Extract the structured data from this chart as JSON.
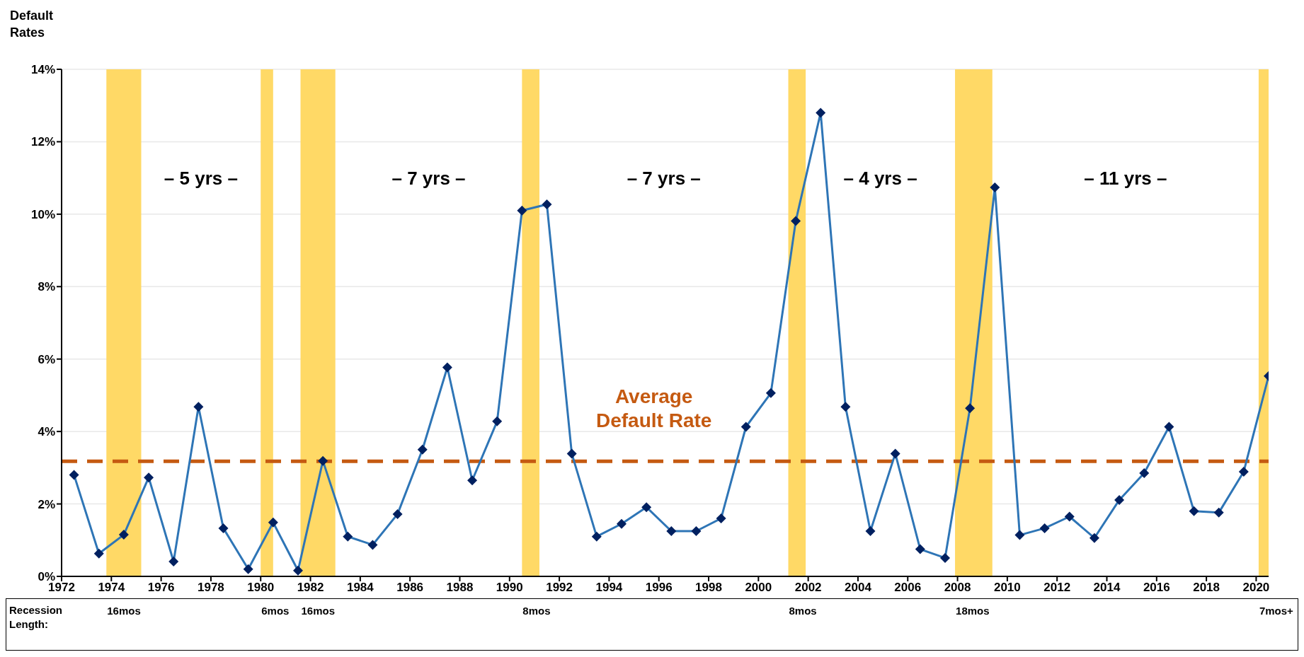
{
  "chart_data": {
    "type": "line",
    "ylabel": "Default Rates",
    "x": [
      1972.5,
      1973.5,
      1974.5,
      1975.5,
      1976.5,
      1977.5,
      1978.5,
      1979.5,
      1980.5,
      1981.5,
      1982.5,
      1983.5,
      1984.5,
      1985.5,
      1986.5,
      1987.5,
      1988.5,
      1989.5,
      1990.5,
      1991.5,
      1992.5,
      1993.5,
      1994.5,
      1995.5,
      1996.5,
      1997.5,
      1998.5,
      1999.5,
      2000.5,
      2001.5,
      2002.5,
      2003.5,
      2004.5,
      2005.5,
      2006.5,
      2007.5,
      2008.5,
      2009.5,
      2010.5,
      2011.5,
      2012.5,
      2013.5,
      2014.5,
      2015.5,
      2016.5,
      2017.5,
      2018.5,
      2019.5,
      2020.5
    ],
    "series": [
      {
        "color": "#2e75b6",
        "values": [
          2.8,
          0.63,
          1.15,
          2.73,
          0.41,
          4.68,
          1.33,
          0.2,
          1.49,
          0.16,
          3.19,
          1.1,
          0.87,
          1.72,
          3.5,
          5.77,
          2.65,
          4.28,
          10.1,
          10.27,
          3.39,
          1.1,
          1.45,
          1.91,
          1.25,
          1.25,
          1.6,
          4.13,
          5.06,
          9.81,
          12.8,
          4.68,
          1.25,
          3.39,
          0.75,
          0.51,
          4.64,
          10.74,
          1.14,
          1.33,
          1.65,
          1.06,
          2.11,
          2.85,
          4.13,
          1.8,
          1.76,
          2.89,
          5.53
        ]
      }
    ],
    "marker": "diamond",
    "line_style": "solid",
    "grid": "y",
    "xlim": [
      1972,
      2020.5
    ],
    "xticks": [
      1972,
      1974,
      1976,
      1978,
      1980,
      1982,
      1984,
      1986,
      1988,
      1990,
      1992,
      1994,
      1996,
      1998,
      2000,
      2002,
      2004,
      2006,
      2008,
      2010,
      2012,
      2014,
      2016,
      2018,
      2020
    ],
    "ylim": [
      0,
      14
    ],
    "yticks": [
      {
        "value": 0,
        "label": "0%"
      },
      {
        "value": 2,
        "label": "2%"
      },
      {
        "value": 4,
        "label": "4%"
      },
      {
        "value": 6,
        "label": "6%"
      },
      {
        "value": 8,
        "label": "8%"
      },
      {
        "value": 10,
        "label": "10%"
      },
      {
        "value": 12,
        "label": "12%"
      },
      {
        "value": 14,
        "label": "14%"
      }
    ],
    "ref_lines": [
      {
        "axis": "y",
        "value": 3.18,
        "label": "Average Default Rate",
        "color": "#c55a11",
        "line_style": "dashed"
      }
    ],
    "bands": [
      {
        "axis": "x",
        "from": 1973.8,
        "to": 1975.2,
        "label": "16mos",
        "color": "#ffd966"
      },
      {
        "axis": "x",
        "from": 1980.0,
        "to": 1980.5,
        "label": "6mos",
        "color": "#ffd966"
      },
      {
        "axis": "x",
        "from": 1981.6,
        "to": 1983.0,
        "label": "16mos",
        "color": "#ffd966"
      },
      {
        "axis": "x",
        "from": 1990.5,
        "to": 1991.2,
        "label": "8mos",
        "color": "#ffd966"
      },
      {
        "axis": "x",
        "from": 2001.2,
        "to": 2001.9,
        "label": "8mos",
        "color": "#ffd966"
      },
      {
        "axis": "x",
        "from": 2007.9,
        "to": 2009.4,
        "label": "18mos",
        "color": "#ffd966"
      },
      {
        "axis": "x",
        "from": 2020.1,
        "to": 2020.5,
        "label": "7mos+",
        "color": "#ffd966"
      }
    ],
    "annotations": [
      "– 5 yrs –",
      "– 7 yrs –",
      "– 7 yrs –",
      "– 4 yrs –",
      "– 11 yrs –",
      "Recession Length:"
    ]
  }
}
